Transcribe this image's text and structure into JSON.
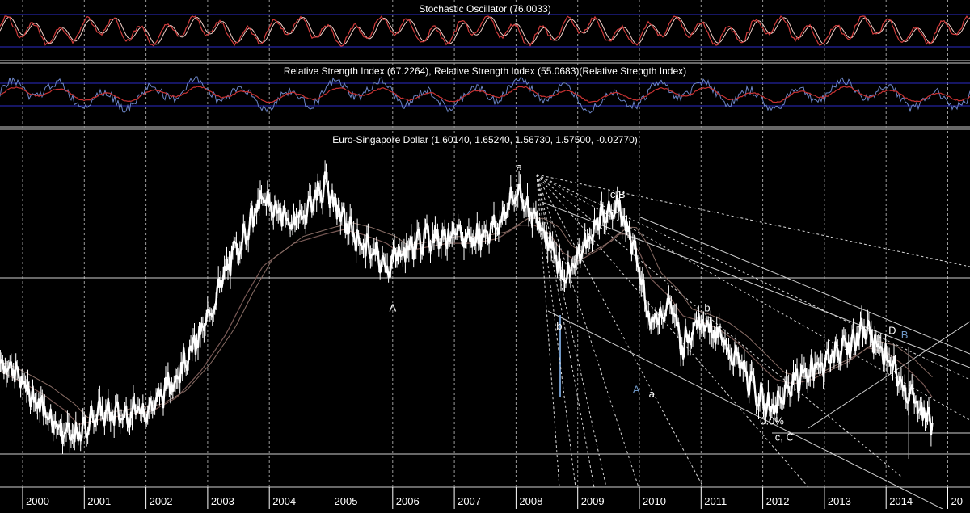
{
  "panels": {
    "stochastic": {
      "title": "Stochastic Oscillator (76.0033)"
    },
    "rsi": {
      "title": "Relative Strength Index (67.2264), Relative Strength Index (55.0683)(Relative Strength Index)"
    },
    "price": {
      "title": "Euro-Singapore Dollar (1.60140, 1.65240, 1.56730, 1.57500, -0.02770)"
    }
  },
  "chart_data": {
    "type": "line",
    "subtype": "candlestick-price-with-indicators",
    "title": "Euro-Singapore Dollar (1.60140, 1.65240, 1.56730, 1.57500, -0.02770)",
    "instrument": "Euro-Singapore Dollar",
    "last_ohlc": {
      "open": 1.6014,
      "high": 1.6524,
      "low": 1.5673,
      "close": 1.575,
      "change": -0.0277
    },
    "x_axis": {
      "ticks": [
        "2000",
        "2001",
        "2002",
        "2003",
        "2004",
        "2005",
        "2006",
        "2007",
        "2008",
        "2009",
        "2010",
        "2011",
        "2012",
        "2013",
        "2014",
        "20"
      ]
    },
    "grid": true,
    "price_series": {
      "name": "",
      "x": [
        1999.6,
        1999.9,
        2000.3,
        2000.7,
        2000.9,
        2001.2,
        2001.6,
        2002.1,
        2002.5,
        2002.9,
        2003.3,
        2003.6,
        2003.9,
        2004.4,
        2004.9,
        2005.2,
        2005.5,
        2005.9,
        2006.1,
        2006.5,
        2006.9,
        2007.3,
        2007.7,
        2008.05,
        2008.3,
        2008.55,
        2008.75,
        2009.0,
        2009.4,
        2009.65,
        2009.8,
        2010.0,
        2010.2,
        2010.5,
        2010.7,
        2010.95,
        2011.3,
        2011.6,
        2011.9,
        2012.2,
        2012.5,
        2012.8,
        2013.1,
        2013.4,
        2013.7,
        2014.0,
        2014.3,
        2014.6,
        2014.75
      ],
      "y": [
        1.73,
        1.69,
        1.62,
        1.56,
        1.55,
        1.61,
        1.6,
        1.62,
        1.69,
        1.78,
        1.92,
        2.0,
        2.08,
        2.02,
        2.11,
        2.03,
        1.98,
        1.93,
        1.96,
        1.99,
        2.0,
        1.99,
        2.02,
        2.1,
        2.03,
        1.99,
        1.9,
        1.95,
        2.04,
        2.06,
        2.02,
        1.92,
        1.8,
        1.85,
        1.75,
        1.82,
        1.77,
        1.72,
        1.65,
        1.61,
        1.68,
        1.7,
        1.73,
        1.76,
        1.79,
        1.73,
        1.66,
        1.61,
        1.58
      ]
    },
    "moving_averages": [
      {
        "name": "",
        "y": [
          1.7,
          1.68,
          1.65,
          1.61,
          1.58,
          1.59,
          1.6,
          1.61,
          1.64,
          1.7,
          1.78,
          1.86,
          1.93,
          1.98,
          2.0,
          2.01,
          2.0,
          1.98,
          1.96,
          1.97,
          1.98,
          1.98,
          1.99,
          2.02,
          2.02,
          2.0,
          1.96,
          1.94,
          1.97,
          2.0,
          2.0,
          1.96,
          1.9,
          1.86,
          1.82,
          1.81,
          1.79,
          1.76,
          1.72,
          1.68,
          1.67,
          1.68,
          1.7,
          1.72,
          1.75,
          1.74,
          1.71,
          1.67,
          1.64
        ]
      }
    ],
    "annotations": [
      {
        "label": "a",
        "x": 2008.05,
        "y": 2.14,
        "color": "#ffffff"
      },
      {
        "label": "A",
        "x": 2006.0,
        "y": 1.83,
        "color": "#ffffff"
      },
      {
        "label": "c,B",
        "x": 2009.65,
        "y": 2.08,
        "color": "#ffffff"
      },
      {
        "label": "b",
        "x": 2008.7,
        "y": 1.79,
        "color": "#ffffff"
      },
      {
        "label": "b",
        "x": 2011.1,
        "y": 1.83,
        "color": "#ffffff"
      },
      {
        "label": "A",
        "x": 2009.95,
        "y": 1.65,
        "color": "#6f97c6"
      },
      {
        "label": "a",
        "x": 2010.2,
        "y": 1.64,
        "color": "#ffffff"
      },
      {
        "label": "D",
        "x": 2014.1,
        "y": 1.78,
        "color": "#ffffff"
      },
      {
        "label": "B",
        "x": 2014.3,
        "y": 1.77,
        "color": "#6f97c6"
      },
      {
        "label": "0.0%",
        "x": 2012.15,
        "y": 1.58,
        "color": "#ffffff"
      },
      {
        "label": "c, C",
        "x": 2012.35,
        "y": 1.545,
        "color": "#ffffff"
      }
    ],
    "horizontal_levels": [
      1.87,
      1.545,
      1.58
    ],
    "stochastic": {
      "last": 76.0033,
      "levels": [
        20,
        80
      ]
    },
    "rsi": {
      "values": [
        67.2264,
        55.0683
      ]
    },
    "colors": {
      "background": "#000000",
      "price": "#ffffff",
      "ma": "#7a5a56",
      "stochastic_line": "#d23c3c",
      "stochastic_signal": "#f2d0c8",
      "rsi_blue": "#6d86c8",
      "rsi_red": "#c83232",
      "band": "#3232c8",
      "grid": "#a0a0a0",
      "accent_blue": "#6f97c6"
    }
  }
}
